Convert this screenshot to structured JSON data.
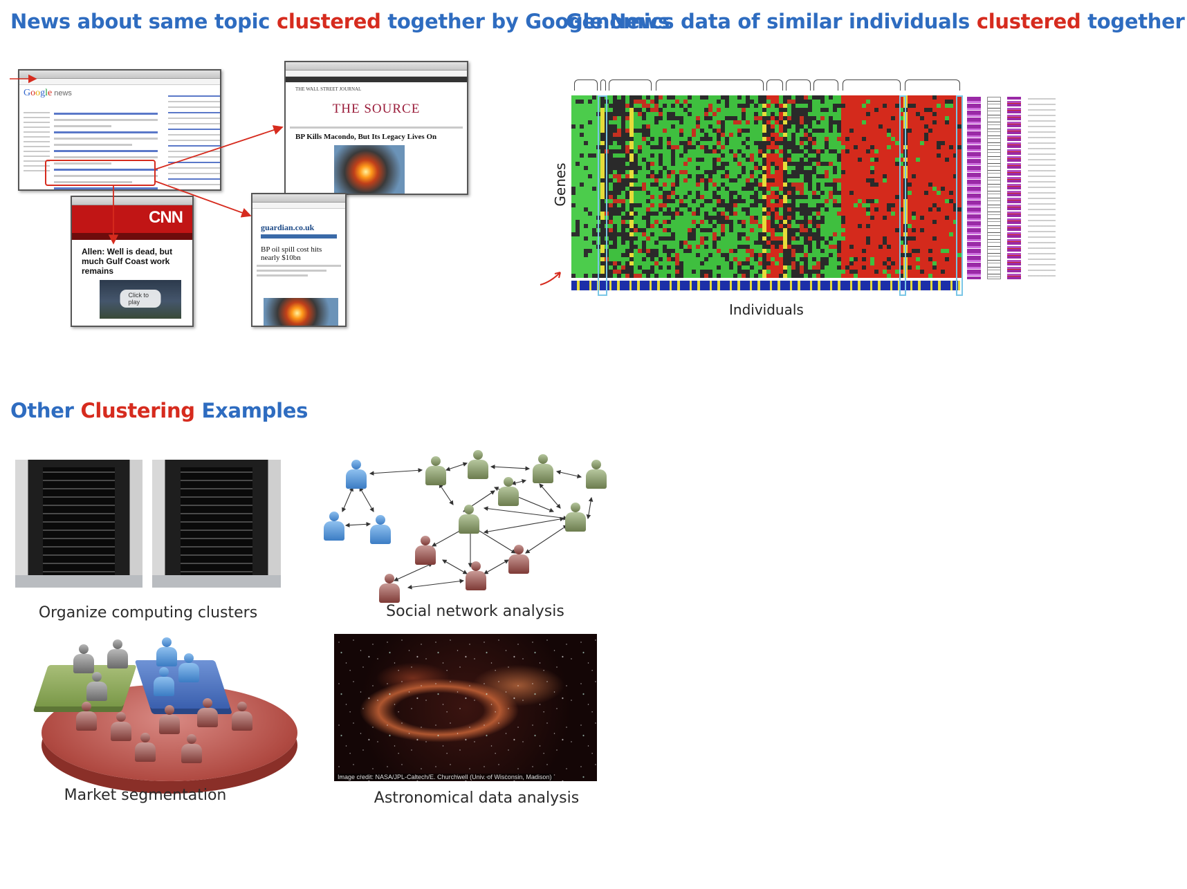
{
  "headings": {
    "news": {
      "before": "News about same topic ",
      "highlight": "clustered",
      "after": " together by Google News"
    },
    "genomics": {
      "before": "Genomics data of similar individuals ",
      "highlight": "clustered",
      "after": " together"
    },
    "other": {
      "before": "Other ",
      "highlight": "Clustering",
      "after": " Examples"
    }
  },
  "news_collage": {
    "google_news_logo": "Google",
    "google_news_suffix": "news",
    "wsj_masthead": "THE WALL STREET JOURNAL",
    "wsj_title": "THE SOURCE",
    "wsj_headline": "BP Kills Macondo, But Its Legacy Lives On",
    "cnn_logo": "CNN",
    "cnn_headline": "Allen: Well is dead, but much Gulf Coast work remains",
    "cnn_play": "Click to play",
    "guardian_logo": "guardian.co.uk",
    "guardian_headline": "BP oil spill cost hits nearly $10bn"
  },
  "genomics": {
    "y_label": "Genes",
    "x_label": "Individuals"
  },
  "examples": [
    {
      "caption": "Organize computing clusters"
    },
    {
      "caption": "Social network analysis"
    },
    {
      "caption": "Market segmentation"
    },
    {
      "caption": "Astronomical data analysis",
      "credit": "Image credit: NASA/JPL-Caltech/E. Churchwell (Univ. of Wisconsin, Madison)"
    }
  ],
  "colors": {
    "heading_blue": "#2e6cc0",
    "heading_red": "#d62b1e",
    "heat_green": "#3fbf3f",
    "heat_red": "#d42a1c",
    "heat_dark": "#2a2a2a",
    "person_blue": "#5b9ad8",
    "person_green": "#8a9a68",
    "person_red": "#9a5250"
  }
}
